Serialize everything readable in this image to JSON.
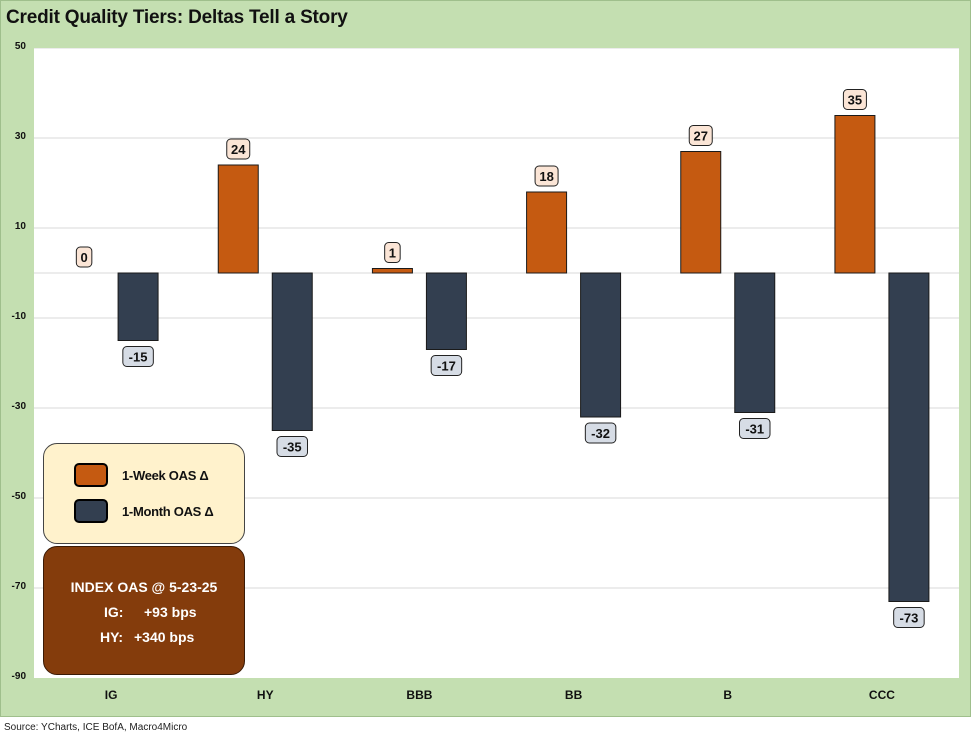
{
  "title": "Credit Quality Tiers: Deltas Tell a Story",
  "source": "Source: YCharts, ICE BofA, Macro4Micro",
  "legend": {
    "items": [
      {
        "label": "1-Week OAS Δ",
        "color": "#c55a11"
      },
      {
        "label": "1-Month OAS Δ",
        "color": "#333f50"
      }
    ]
  },
  "index_box": {
    "title": "INDEX OAS @ 5-23-25",
    "rows": [
      {
        "name": "IG:",
        "value": "+93 bps"
      },
      {
        "name": "HY:",
        "value": "+340 bps"
      }
    ]
  },
  "chart_data": {
    "type": "bar",
    "title": "Credit Quality Tiers: Deltas Tell a Story",
    "categories": [
      "IG",
      "HY",
      "BBB",
      "BB",
      "B",
      "CCC"
    ],
    "series": [
      {
        "name": "1-Week OAS Δ",
        "color": "#c55a11",
        "label_bg": "#fbe5d6",
        "values": [
          0,
          24,
          1,
          18,
          27,
          35
        ]
      },
      {
        "name": "1-Month OAS Δ",
        "color": "#333f50",
        "label_bg": "#d6dce5",
        "values": [
          -15,
          -35,
          -17,
          -32,
          -31,
          -73
        ]
      }
    ],
    "ylim": [
      -90,
      50
    ],
    "yticks": [
      50,
      30,
      10,
      -10,
      -30,
      -50,
      -70,
      -90
    ],
    "grid": true,
    "xlabel": "",
    "ylabel": ""
  }
}
